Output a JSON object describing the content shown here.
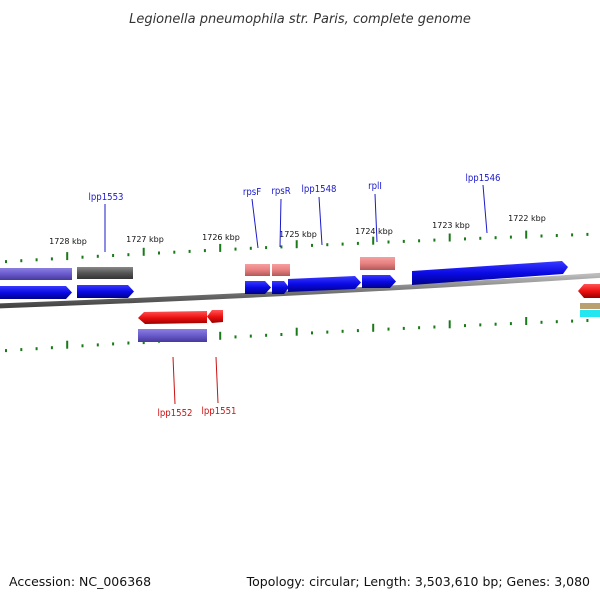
{
  "title": "Legionella pneumophila str. Paris, complete genome",
  "footer": {
    "accession": "Accession: NC_006368",
    "topology": "Topology: circular; Length: 3,503,610 bp; Genes: 3,080"
  },
  "kbp_labels": [
    "1728 kbp",
    "1727 kbp",
    "1726 kbp",
    "1725 kbp",
    "1724 kbp",
    "1723 kbp",
    "1722 kbp"
  ],
  "gene_labels": {
    "forward": [
      "lpp1553",
      "rpsF",
      "rpsR",
      "lpp1548",
      "rplI",
      "lpp1546"
    ],
    "reverse": [
      "lpp1552",
      "lpp1551"
    ]
  },
  "colors": {
    "forward_label": "#1a1acc",
    "reverse_label": "#cc1111",
    "forward_cds": "#0a0ae6",
    "reverse_cds": "#ee1111",
    "tick": "#1a7a1a",
    "backbone": "#888888"
  }
}
